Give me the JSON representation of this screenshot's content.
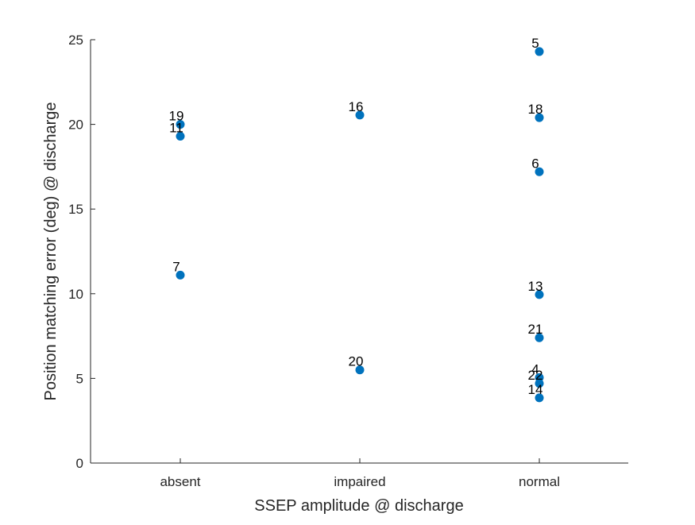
{
  "chart_data": {
    "type": "scatter",
    "title": "",
    "xlabel": "SSEP amplitude @ discharge",
    "ylabel": "Position matching error (deg) @ discharge",
    "categories": [
      "absent",
      "impaired",
      "normal"
    ],
    "ylim": [
      0,
      25
    ],
    "yticks": [
      "0",
      "5",
      "10",
      "15",
      "20",
      "25"
    ],
    "grid": false,
    "legend": "none",
    "marker_color": "#0072BD",
    "points": [
      {
        "category": "absent",
        "y": 20.0,
        "label": "19"
      },
      {
        "category": "absent",
        "y": 19.3,
        "label": "11"
      },
      {
        "category": "absent",
        "y": 11.1,
        "label": "7"
      },
      {
        "category": "impaired",
        "y": 20.55,
        "label": "16"
      },
      {
        "category": "impaired",
        "y": 5.5,
        "label": "20"
      },
      {
        "category": "normal",
        "y": 24.3,
        "label": "5"
      },
      {
        "category": "normal",
        "y": 20.4,
        "label": "18"
      },
      {
        "category": "normal",
        "y": 17.2,
        "label": "6"
      },
      {
        "category": "normal",
        "y": 9.95,
        "label": "13"
      },
      {
        "category": "normal",
        "y": 7.4,
        "label": "21"
      },
      {
        "category": "normal",
        "y": 5.05,
        "label": "4"
      },
      {
        "category": "normal",
        "y": 4.7,
        "label": "22"
      },
      {
        "category": "normal",
        "y": 3.85,
        "label": "14"
      }
    ]
  }
}
